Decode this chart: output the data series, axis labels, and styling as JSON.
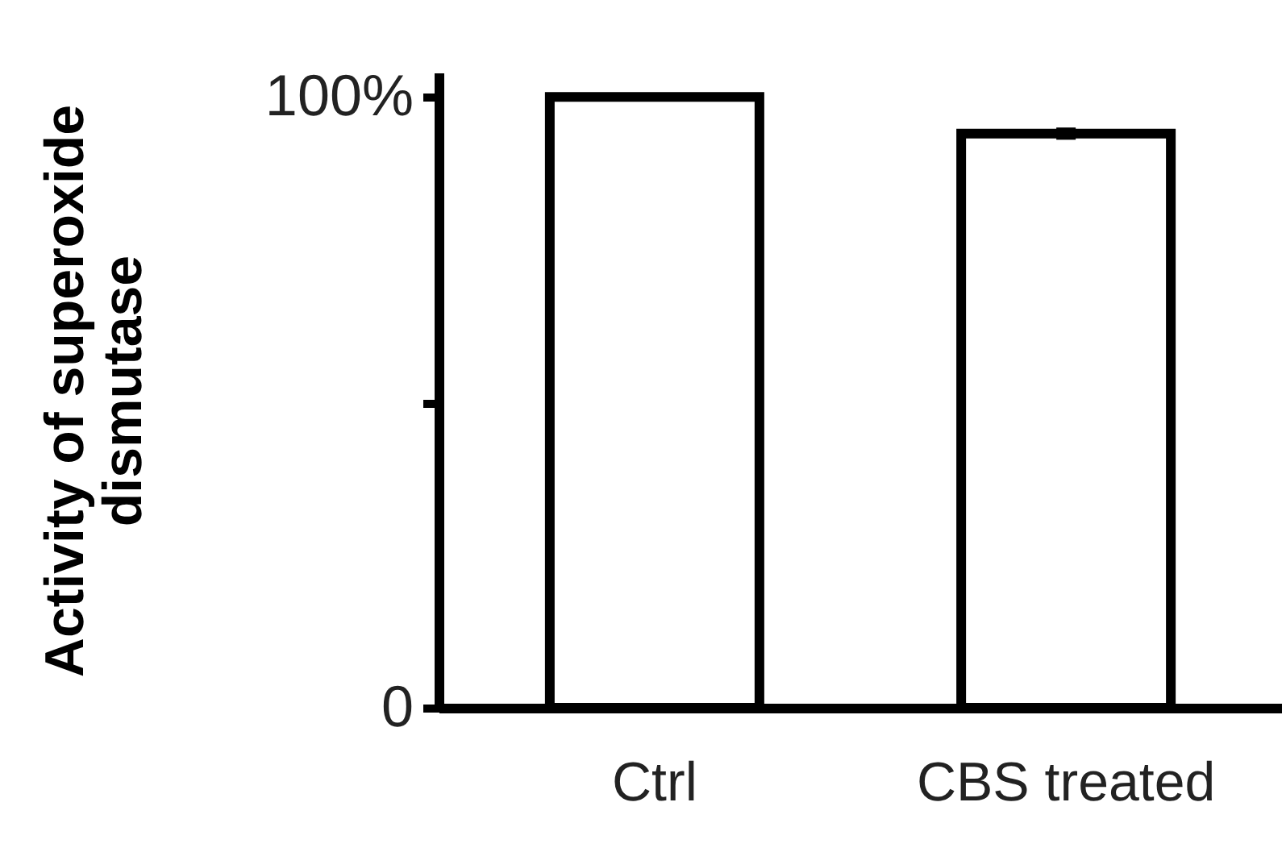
{
  "chart_data": {
    "type": "bar",
    "ylabel": "Activity of superoxide\ndismutase",
    "categories": [
      "Ctrl",
      "CBS treated"
    ],
    "values": [
      100,
      94
    ],
    "errors": [
      null,
      1
    ],
    "color": "#ffffff",
    "ylim": [
      0,
      104
    ],
    "yticks": [
      {
        "value": 0,
        "label": "0"
      },
      {
        "value": 50,
        "label": null
      },
      {
        "value": 100,
        "label": "100%"
      }
    ],
    "grid": false
  }
}
